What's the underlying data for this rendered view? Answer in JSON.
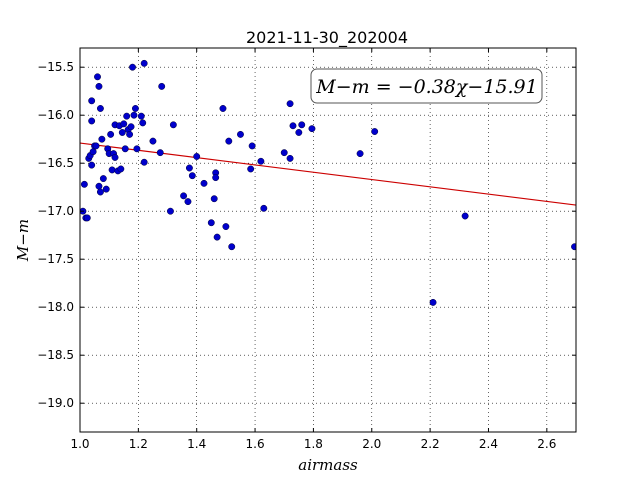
{
  "chart_data": {
    "type": "scatter",
    "title": "2021-11-30_202004",
    "xlabel": "airmass",
    "ylabel": "M−m",
    "xlim": [
      1.0,
      2.7
    ],
    "ylim": [
      -19.3,
      -15.3
    ],
    "ylim_inverted": true,
    "xticks": [
      "1.0",
      "1.2",
      "1.4",
      "1.6",
      "1.8",
      "2.0",
      "2.2",
      "2.4",
      "2.6"
    ],
    "yticks": [
      "−15.5",
      "−16.0",
      "−16.5",
      "−17.0",
      "−17.5",
      "−18.0",
      "−18.5",
      "−19.0"
    ],
    "grid": true,
    "annotation": "M−m = −0.38χ−15.91",
    "fit": {
      "slope": -0.38,
      "intercept": -15.91,
      "color": "#cc0000"
    },
    "point_color": "#0000cc",
    "points": [
      [
        1.01,
        -17.0
      ],
      [
        1.015,
        -16.72
      ],
      [
        1.02,
        -17.07
      ],
      [
        1.025,
        -17.07
      ],
      [
        1.03,
        -16.45
      ],
      [
        1.035,
        -16.42
      ],
      [
        1.04,
        -15.85
      ],
      [
        1.04,
        -16.06
      ],
      [
        1.04,
        -16.52
      ],
      [
        1.045,
        -16.38
      ],
      [
        1.05,
        -16.32
      ],
      [
        1.055,
        -16.32
      ],
      [
        1.06,
        -15.6
      ],
      [
        1.065,
        -15.7
      ],
      [
        1.065,
        -16.74
      ],
      [
        1.07,
        -15.93
      ],
      [
        1.07,
        -16.8
      ],
      [
        1.075,
        -16.25
      ],
      [
        1.08,
        -16.66
      ],
      [
        1.09,
        -16.77
      ],
      [
        1.095,
        -16.35
      ],
      [
        1.1,
        -16.4
      ],
      [
        1.105,
        -16.2
      ],
      [
        1.11,
        -16.57
      ],
      [
        1.115,
        -16.4
      ],
      [
        1.12,
        -16.44
      ],
      [
        1.12,
        -16.1
      ],
      [
        1.13,
        -16.58
      ],
      [
        1.135,
        -16.11
      ],
      [
        1.14,
        -16.56
      ],
      [
        1.145,
        -16.18
      ],
      [
        1.15,
        -16.09
      ],
      [
        1.155,
        -16.35
      ],
      [
        1.16,
        -16.01
      ],
      [
        1.165,
        -16.15
      ],
      [
        1.17,
        -16.2
      ],
      [
        1.175,
        -16.12
      ],
      [
        1.18,
        -15.5
      ],
      [
        1.185,
        -16.0
      ],
      [
        1.19,
        -15.93
      ],
      [
        1.195,
        -16.35
      ],
      [
        1.21,
        -16.01
      ],
      [
        1.215,
        -16.08
      ],
      [
        1.22,
        -15.46
      ],
      [
        1.22,
        -16.49
      ],
      [
        1.25,
        -16.27
      ],
      [
        1.275,
        -16.39
      ],
      [
        1.28,
        -15.7
      ],
      [
        1.31,
        -17.0
      ],
      [
        1.32,
        -16.1
      ],
      [
        1.355,
        -16.84
      ],
      [
        1.37,
        -16.9
      ],
      [
        1.375,
        -16.55
      ],
      [
        1.385,
        -16.63
      ],
      [
        1.4,
        -16.43
      ],
      [
        1.425,
        -16.71
      ],
      [
        1.45,
        -17.12
      ],
      [
        1.46,
        -16.87
      ],
      [
        1.465,
        -16.6
      ],
      [
        1.465,
        -16.65
      ],
      [
        1.47,
        -17.27
      ],
      [
        1.49,
        -15.93
      ],
      [
        1.5,
        -17.16
      ],
      [
        1.51,
        -16.27
      ],
      [
        1.52,
        -17.37
      ],
      [
        1.55,
        -16.2
      ],
      [
        1.585,
        -16.56
      ],
      [
        1.59,
        -16.32
      ],
      [
        1.62,
        -16.48
      ],
      [
        1.63,
        -16.97
      ],
      [
        1.7,
        -16.39
      ],
      [
        1.72,
        -15.88
      ],
      [
        1.72,
        -16.45
      ],
      [
        1.73,
        -16.11
      ],
      [
        1.75,
        -16.18
      ],
      [
        1.76,
        -16.1
      ],
      [
        1.795,
        -16.14
      ],
      [
        1.96,
        -16.4
      ],
      [
        2.01,
        -16.17
      ],
      [
        2.21,
        -17.95
      ],
      [
        2.32,
        -17.05
      ],
      [
        2.695,
        -17.37
      ]
    ]
  }
}
